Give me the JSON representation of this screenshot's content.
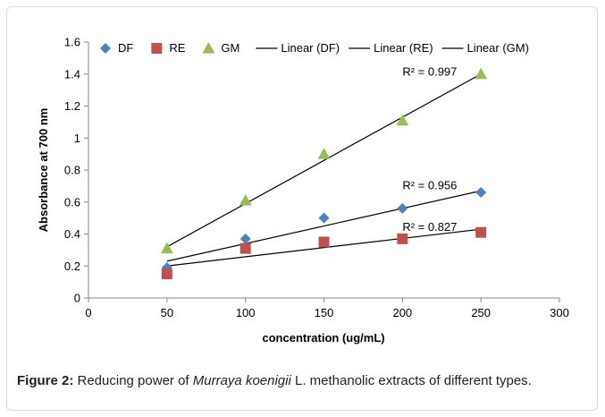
{
  "chart_data": {
    "type": "scatter",
    "xlabel": "concentration (ug/mL)",
    "ylabel": "Absorbance at 700 nm",
    "xlim": [
      0,
      300
    ],
    "ylim": [
      0,
      1.6
    ],
    "x_ticks": [
      0,
      50,
      100,
      150,
      200,
      250,
      300
    ],
    "x_tick_labels": [
      "0",
      "50",
      "100",
      "150",
      "200",
      "250",
      "300"
    ],
    "y_ticks": [
      0,
      0.2,
      0.4,
      0.6,
      0.8,
      1.0,
      1.2,
      1.4,
      1.6
    ],
    "y_tick_labels": [
      "0",
      "0.2",
      "0.4",
      "0.6",
      "0.8",
      "1",
      "1.2",
      "1.4",
      "1.6"
    ],
    "grid": false,
    "legend_position": "top",
    "series": [
      {
        "name": "DF",
        "marker": "diamond",
        "color": "#4f81bd",
        "x": [
          50,
          100,
          150,
          200,
          250
        ],
        "y": [
          0.19,
          0.37,
          0.5,
          0.56,
          0.66
        ]
      },
      {
        "name": "RE",
        "marker": "square",
        "color": "#c0504d",
        "x": [
          50,
          100,
          150,
          200,
          250
        ],
        "y": [
          0.15,
          0.31,
          0.35,
          0.37,
          0.41
        ]
      },
      {
        "name": "GM",
        "marker": "triangle",
        "color": "#9bbb59",
        "x": [
          50,
          100,
          150,
          200,
          250
        ],
        "y": [
          0.31,
          0.61,
          0.9,
          1.11,
          1.4
        ]
      }
    ],
    "trendlines": [
      {
        "name": "Linear (DF)",
        "color": "#000000",
        "x": [
          50,
          250
        ],
        "y": [
          0.23,
          0.67
        ],
        "r2_label": "R² = 0.956",
        "label_x": 200,
        "label_y": 0.68
      },
      {
        "name": "Linear (RE)",
        "color": "#000000",
        "x": [
          50,
          250
        ],
        "y": [
          0.2,
          0.43
        ],
        "r2_label": "R² = 0.827",
        "label_x": 200,
        "label_y": 0.42
      },
      {
        "name": "Linear (GM)",
        "color": "#000000",
        "x": [
          50,
          250
        ],
        "y": [
          0.32,
          1.4
        ],
        "r2_label": "R² = 0.997",
        "label_x": 200,
        "label_y": 1.39
      }
    ]
  },
  "caption": {
    "label": "Figure 2:",
    "text_before": " Reducing power of ",
    "species": "Murraya koenigii",
    "text_after": " L. methanolic extracts of different types."
  }
}
